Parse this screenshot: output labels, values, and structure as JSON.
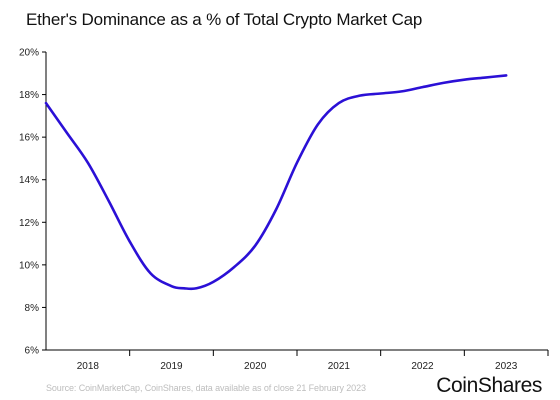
{
  "chart_data": {
    "type": "line",
    "title": "Ether's Dominance as a % of Total Crypto Market Cap",
    "xlabel": "",
    "ylabel": "",
    "x_tick_labels": [
      "2018",
      "2019",
      "2020",
      "2021",
      "2022",
      "2023"
    ],
    "y_tick_labels": [
      "20%",
      "18%",
      "16%",
      "14%",
      "12%",
      "10%",
      "8%",
      "6%"
    ],
    "y_ticks": [
      20,
      18,
      16,
      14,
      12,
      10,
      8,
      6
    ],
    "x_ticks": [
      2018,
      2019,
      2020,
      2021,
      2022,
      2023
    ],
    "ylim": [
      6,
      20
    ],
    "xlim": [
      2017.5,
      2023.5
    ],
    "grid": false,
    "series": [
      {
        "color": "#2b10d6",
        "x": [
          2017.5,
          2017.75,
          2018.0,
          2018.25,
          2018.5,
          2018.75,
          2019.0,
          2019.15,
          2019.3,
          2019.5,
          2019.75,
          2020.0,
          2020.25,
          2020.5,
          2020.75,
          2021.0,
          2021.25,
          2021.5,
          2021.75,
          2022.0,
          2022.25,
          2022.5,
          2022.75,
          2023.0
        ],
        "y": [
          17.6,
          16.2,
          14.8,
          13.0,
          11.1,
          9.6,
          9.0,
          8.9,
          8.9,
          9.2,
          9.9,
          10.9,
          12.6,
          14.8,
          16.6,
          17.6,
          17.95,
          18.05,
          18.15,
          18.35,
          18.55,
          18.7,
          18.8,
          18.9
        ]
      }
    ]
  },
  "footer": {
    "source": "Source: CoinMarketCap, CoinShares, data available as of close 21 February 2023",
    "brand": "CoinShares"
  }
}
